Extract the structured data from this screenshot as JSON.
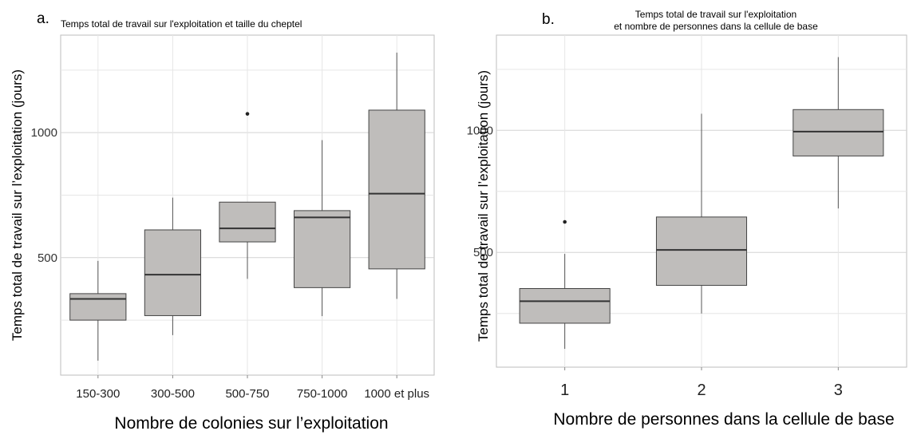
{
  "chart_data": [
    {
      "type": "box",
      "panel_label": "a.",
      "title": "Temps total de travail sur l'exploitation et taille du cheptel",
      "xlabel": "Nombre de colonies sur l’exploitation",
      "ylabel": "Temps total de travail sur l’exploitation (jours)",
      "yticks": [
        500,
        1000
      ],
      "ylim": [
        30,
        1390
      ],
      "grid": true,
      "categories": [
        "150-300",
        "300-500",
        "500-750",
        "750-1000",
        "1000 et plus"
      ],
      "boxes": [
        {
          "category": "150-300",
          "whisker_low": 88,
          "q1": 250,
          "median": 335,
          "q3": 356,
          "whisker_high": 487,
          "outliers": []
        },
        {
          "category": "300-500",
          "whisker_low": 190,
          "q1": 268,
          "median": 432,
          "q3": 611,
          "whisker_high": 740,
          "outliers": []
        },
        {
          "category": "500-750",
          "whisker_low": 415,
          "q1": 563,
          "median": 617,
          "q3": 722,
          "whisker_high": 722,
          "outliers": [
            1075
          ]
        },
        {
          "category": "750-1000",
          "whisker_low": 266,
          "q1": 380,
          "median": 661,
          "q3": 688,
          "whisker_high": 970,
          "outliers": []
        },
        {
          "category": "1000 et plus",
          "whisker_low": 335,
          "q1": 455,
          "median": 756,
          "q3": 1090,
          "whisker_high": 1320,
          "outliers": []
        }
      ]
    },
    {
      "type": "box",
      "panel_label": "b.",
      "title_lines": [
        "Temps total de travail sur l'exploitation",
        "et nombre de personnes dans la cellule de base"
      ],
      "xlabel": "Nombre de personnes dans la cellule de base",
      "ylabel": "Temps total de travail sur l’exploitation (jours)",
      "yticks": [
        500,
        1000
      ],
      "ytick_labels": [
        "500",
        "1000"
      ],
      "ylim": [
        30,
        1390
      ],
      "grid": true,
      "categories": [
        "1",
        "2",
        "3"
      ],
      "boxes": [
        {
          "category": "1",
          "whisker_low": 105,
          "q1": 210,
          "median": 300,
          "q3": 352,
          "whisker_high": 494,
          "outliers": [
            625
          ]
        },
        {
          "category": "2",
          "whisker_low": 250,
          "q1": 365,
          "median": 510,
          "q3": 645,
          "whisker_high": 1068,
          "outliers": []
        },
        {
          "category": "3",
          "whisker_low": 680,
          "q1": 895,
          "median": 995,
          "q3": 1085,
          "whisker_high": 1300,
          "outliers": []
        }
      ]
    }
  ]
}
